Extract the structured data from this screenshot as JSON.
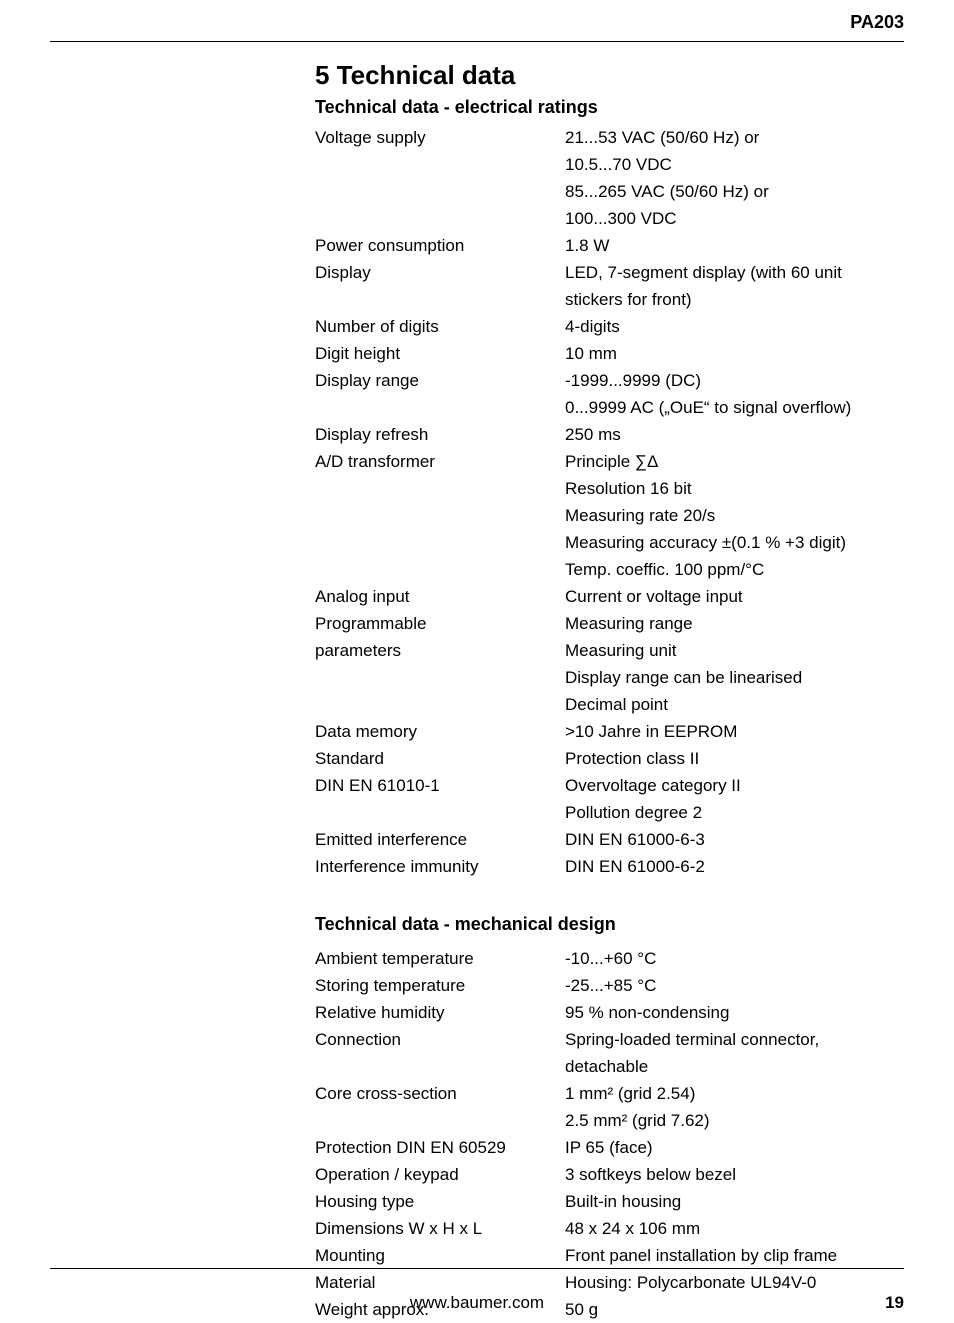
{
  "colors": {
    "text": "#000000",
    "background": "#ffffff",
    "rule": "#000000"
  },
  "typography": {
    "font_family": "Arial, Helvetica, sans-serif",
    "body_size_pt": 12,
    "heading_size_pt": 19,
    "subheading_size_pt": 13,
    "model_size_pt": 13
  },
  "header": {
    "model": "PA203"
  },
  "section": {
    "number": "5",
    "title": "Technical data",
    "full": "5   Technical data"
  },
  "electrical": {
    "title": "Technical data - electrical ratings",
    "rows": [
      {
        "label": "Voltage supply",
        "value": "21...53 VAC (50/60 Hz) or\n10.5...70 VDC\n85...265 VAC (50/60 Hz) or\n100...300 VDC"
      },
      {
        "label": "Power consumption",
        "value": "1.8 W"
      },
      {
        "label": "Display",
        "value": "LED, 7-segment display (with 60 unit stickers for front)"
      },
      {
        "label": "Number of digits",
        "value": "4-digits"
      },
      {
        "label": "Digit height",
        "value": "10 mm"
      },
      {
        "label": "Display range",
        "value": "-1999...9999 (DC)\n0...9999 AC („OuE“ to signal overflow)"
      },
      {
        "label": "Display refresh",
        "value": "250 ms"
      },
      {
        "label": "A/D transformer",
        "value": "Principle ∑Δ\nResolution 16 bit\nMeasuring rate 20/s\nMeasuring accuracy ±(0.1 % +3 digit)\nTemp. coeffic. 100 ppm/°C"
      },
      {
        "label": "Analog input",
        "value": "Current or voltage input"
      },
      {
        "label": "Programmable\nparameters",
        "value": "Measuring range\nMeasuring unit\nDisplay range can be linearised\nDecimal point"
      },
      {
        "label": "Data memory",
        "value": ">10 Jahre in EEPROM"
      },
      {
        "label": "Standard\nDIN EN 61010-1",
        "value": "Protection class II\nOvervoltage category II\nPollution degree 2"
      },
      {
        "label": "Emitted interference",
        "value": "DIN EN 61000-6-3"
      },
      {
        "label": "Interference immunity",
        "value": "DIN EN 61000-6-2"
      }
    ]
  },
  "mechanical": {
    "title": "Technical data - mechanical design",
    "rows": [
      {
        "label": "Ambient temperature",
        "value": "-10...+60 °C"
      },
      {
        "label": "Storing temperature",
        "value": "-25...+85 °C"
      },
      {
        "label": "Relative humidity",
        "value": "95 % non-condensing"
      },
      {
        "label": "Connection",
        "value": "Spring-loaded terminal connector, detachable"
      },
      {
        "label": "Core cross-section",
        "value": "1 mm² (grid 2.54)\n2.5 mm² (grid 7.62)"
      },
      {
        "label": "Protection DIN EN 60529",
        "value": "IP 65 (face)"
      },
      {
        "label": "Operation / keypad",
        "value": "3 softkeys below bezel"
      },
      {
        "label": "Housing type",
        "value": "Built-in housing"
      },
      {
        "label": "Dimensions W x H x L",
        "value": "48 x 24 x 106 mm"
      },
      {
        "label": "Mounting",
        "value": "Front panel installation by clip frame"
      },
      {
        "label": "Material",
        "value": "Housing: Polycarbonate UL94V-0"
      },
      {
        "label": "Weight approx.",
        "value": "50 g"
      }
    ]
  },
  "footer": {
    "url": "www.baumer.com",
    "page": "19"
  }
}
